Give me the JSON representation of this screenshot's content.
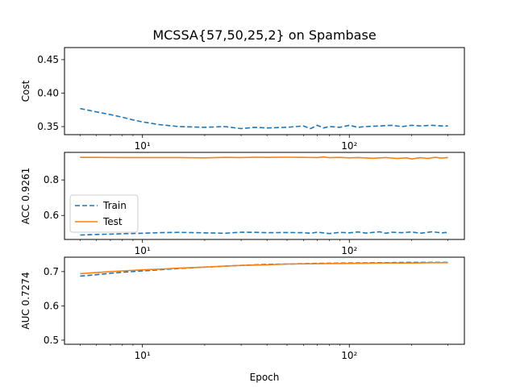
{
  "figure": {
    "title": "MCSSA{57,50,25,2} on Spambase",
    "xlabel": "Epoch"
  },
  "colors": {
    "train": "#1f77b4",
    "test": "#ff7f0e",
    "axis": "#000000"
  },
  "chart_data": [
    {
      "type": "line",
      "ylabel": "Cost",
      "xscale": "log",
      "xlim": [
        4.2,
        360
      ],
      "ylim": [
        0.338,
        0.468
      ],
      "yticks": [
        0.35,
        0.4,
        0.45
      ],
      "yticklabels": [
        "0.35",
        "0.40",
        "0.45"
      ],
      "xticks": [
        10,
        100
      ],
      "xticklabels": [
        "10¹",
        "10²"
      ],
      "series": [
        {
          "key": "train",
          "style": "dashed",
          "x": [
            5,
            6,
            7,
            8,
            9,
            10,
            12,
            15,
            20,
            25,
            30,
            35,
            40,
            50,
            60,
            65,
            70,
            75,
            80,
            90,
            100,
            110,
            120,
            140,
            160,
            180,
            200,
            220,
            250,
            280,
            300
          ],
          "y": [
            0.377,
            0.372,
            0.368,
            0.364,
            0.36,
            0.357,
            0.353,
            0.35,
            0.349,
            0.35,
            0.347,
            0.349,
            0.348,
            0.349,
            0.351,
            0.347,
            0.352,
            0.348,
            0.35,
            0.349,
            0.352,
            0.349,
            0.35,
            0.351,
            0.352,
            0.35,
            0.352,
            0.351,
            0.352,
            0.351,
            0.351
          ]
        }
      ]
    },
    {
      "type": "line",
      "ylabel": "ACC 0.9261",
      "xscale": "log",
      "xlim": [
        4.2,
        360
      ],
      "ylim": [
        0.465,
        0.955
      ],
      "yticks": [
        0.6,
        0.8
      ],
      "yticklabels": [
        "0.6",
        "0.8"
      ],
      "xticks": [
        10,
        100
      ],
      "xticklabels": [
        "10¹",
        "10²"
      ],
      "legend": {
        "position": "lower-left",
        "entries": [
          "Train",
          "Test"
        ]
      },
      "series": [
        {
          "key": "train",
          "name": "Train",
          "style": "dashed",
          "x": [
            5,
            6,
            7,
            8,
            10,
            12,
            15,
            20,
            25,
            30,
            35,
            40,
            50,
            60,
            65,
            70,
            80,
            90,
            100,
            110,
            120,
            140,
            150,
            160,
            180,
            200,
            220,
            250,
            280,
            300
          ],
          "y": [
            0.49,
            0.493,
            0.495,
            0.497,
            0.5,
            0.503,
            0.505,
            0.502,
            0.5,
            0.506,
            0.505,
            0.503,
            0.504,
            0.503,
            0.5,
            0.506,
            0.498,
            0.505,
            0.502,
            0.507,
            0.501,
            0.508,
            0.5,
            0.506,
            0.503,
            0.507,
            0.5,
            0.508,
            0.502,
            0.505
          ]
        },
        {
          "key": "test",
          "name": "Test",
          "style": "solid",
          "x": [
            5,
            6,
            8,
            10,
            12,
            15,
            20,
            25,
            30,
            35,
            40,
            50,
            60,
            70,
            75,
            80,
            90,
            100,
            110,
            130,
            150,
            170,
            190,
            200,
            220,
            240,
            260,
            280,
            300
          ],
          "y": [
            0.927,
            0.927,
            0.926,
            0.926,
            0.926,
            0.926,
            0.924,
            0.927,
            0.926,
            0.928,
            0.927,
            0.928,
            0.927,
            0.926,
            0.929,
            0.925,
            0.927,
            0.924,
            0.926,
            0.922,
            0.926,
            0.921,
            0.924,
            0.918,
            0.925,
            0.921,
            0.927,
            0.923,
            0.926
          ]
        }
      ]
    },
    {
      "type": "line",
      "ylabel": "AUC 0.7274",
      "xscale": "log",
      "xlim": [
        4.2,
        360
      ],
      "ylim": [
        0.488,
        0.742
      ],
      "yticks": [
        0.5,
        0.6,
        0.7
      ],
      "yticklabels": [
        "0.5",
        "0.6",
        "0.7"
      ],
      "xticks": [
        10,
        100
      ],
      "xticklabels": [
        "10¹",
        "10²"
      ],
      "series": [
        {
          "key": "train",
          "style": "dashed",
          "x": [
            5,
            6,
            7,
            8,
            10,
            12,
            15,
            20,
            25,
            30,
            40,
            50,
            70,
            100,
            150,
            200,
            250,
            300
          ],
          "y": [
            0.687,
            0.691,
            0.695,
            0.698,
            0.702,
            0.705,
            0.709,
            0.713,
            0.716,
            0.718,
            0.721,
            0.722,
            0.724,
            0.725,
            0.726,
            0.727,
            0.727,
            0.727
          ]
        },
        {
          "key": "test",
          "style": "solid",
          "x": [
            5,
            6,
            7,
            8,
            10,
            12,
            15,
            20,
            25,
            30,
            40,
            50,
            70,
            100,
            150,
            200,
            250,
            300
          ],
          "y": [
            0.694,
            0.697,
            0.7,
            0.702,
            0.705,
            0.707,
            0.71,
            0.713,
            0.716,
            0.718,
            0.72,
            0.722,
            0.723,
            0.724,
            0.725,
            0.725,
            0.726,
            0.726
          ]
        }
      ]
    }
  ]
}
